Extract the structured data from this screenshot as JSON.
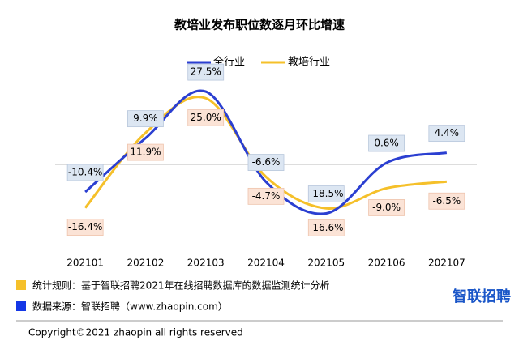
{
  "chart_data": {
    "type": "line",
    "title": "教培业发布职位数逐月环比增速",
    "categories": [
      "202101",
      "202102",
      "202103",
      "202104",
      "202105",
      "202106",
      "202107"
    ],
    "series": [
      {
        "name": "全行业",
        "color": "#2b3fd1",
        "values": [
          -10.4,
          9.9,
          27.5,
          -6.6,
          -18.5,
          0.6,
          4.4
        ],
        "value_labels": [
          "-10.4%",
          "9.9%",
          "27.5%",
          "-6.6%",
          "-18.5%",
          "0.6%",
          "4.4%"
        ]
      },
      {
        "name": "教培行业",
        "color": "#f5c02a",
        "values": [
          -16.4,
          11.9,
          25.0,
          -4.7,
          -16.6,
          -9.0,
          -6.5
        ],
        "value_labels": [
          "-16.4%",
          "11.9%",
          "25.0%",
          "-4.7%",
          "-16.6%",
          "-9.0%",
          "-6.5%"
        ]
      }
    ],
    "smooth": true,
    "legend": "top"
  },
  "footnotes": [
    "统计规则：基于智联招聘2021年在线招聘数据库的数据监测统计分析",
    "数据来源：智联招聘（www.zhaopin.com）"
  ],
  "logo": "智联招聘",
  "copyright": "Copyright©2021 zhaopin all rights reserved"
}
